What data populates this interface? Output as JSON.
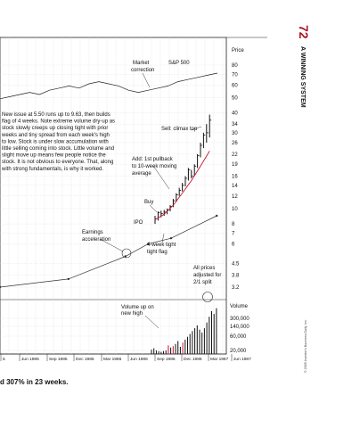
{
  "header": {
    "page_number": "72",
    "section_title": "A WINNING SYSTEM"
  },
  "caption": {
    "text": "d 307% in 23 weeks."
  },
  "copyright": {
    "text": "© 2009 Investor's Business Daily, Inc."
  },
  "chart_data": {
    "type": "line",
    "price_axis_label": "Price",
    "price_ticks": [
      "80",
      "70",
      "60",
      "50",
      "40",
      "34",
      "30",
      "26",
      "22",
      "19",
      "16",
      "14",
      "12",
      "10",
      "8",
      "7",
      "6",
      "4.5",
      "3.8",
      "3.2"
    ],
    "volume_axis_label": "Volume",
    "volume_ticks": [
      "300,000",
      "140,000",
      "60,000",
      "20,000"
    ],
    "x_ticks": [
      "5",
      "Jun 1985",
      "Sep 1985",
      "Dec 1985",
      "Mar 1986",
      "Jun 1986",
      "Sep 1986",
      "Dec 1986",
      "Mar 1987",
      "Jun 1987"
    ],
    "annotations": {
      "market_correction": [
        "Market",
        "correction"
      ],
      "sp500": "S&P 500",
      "sell_climax": "Sell: climax top",
      "description": [
        "New issue at 5.50 runs up to 9.63, then builds",
        "flag of 4 weeks. Note extreme volume dry-up as",
        "stock slowly creeps up closing tight with prior",
        "weeks and tiny spread from each week's high",
        "to low. Stock is under slow accumulation with",
        "little selling coming into stock. Little volume and",
        "slight move up means few people notice the",
        "stock. It is not obvious to everyone. That, along",
        "with strong fundamentals, is why it worked."
      ],
      "add_pullback": [
        "Add: 1st pullback",
        "to 10-week moving",
        "average"
      ],
      "buy": "Buy",
      "ipo": "IPO",
      "earnings": [
        "Earnings",
        "acceleration"
      ],
      "tight_flag": [
        "4-week tight",
        "tight flag"
      ],
      "split": [
        "All prices",
        "adjusted for",
        "2/1 split"
      ],
      "volume_up": [
        "Volume up on",
        "new high"
      ]
    },
    "series": [
      {
        "name": "S&P 500",
        "x": [
          0,
          1,
          2,
          3,
          4,
          5,
          6,
          7,
          8,
          9,
          10,
          11,
          12,
          13,
          14,
          15,
          16,
          17,
          18,
          19,
          20,
          21,
          22
        ],
        "values": [
          78,
          79,
          80,
          81,
          80,
          82,
          83,
          84,
          83,
          85,
          86,
          85,
          84,
          82,
          81,
          82,
          83,
          84,
          86,
          87,
          88,
          89,
          90
        ]
      }
    ],
    "earnings_line": {
      "x": [
        0,
        6,
        11,
        13,
        15,
        19
      ],
      "values": [
        3.2,
        3.6,
        5.0,
        6.0,
        6.5,
        9.0
      ]
    },
    "weekly_bars": [
      {
        "w": 0,
        "h": 9.0,
        "l": 8.0,
        "c": 8.6
      },
      {
        "w": 1,
        "h": 9.6,
        "l": 8.4,
        "c": 9.4
      },
      {
        "w": 2,
        "h": 9.7,
        "l": 8.8,
        "c": 9.3
      },
      {
        "w": 3,
        "h": 9.8,
        "l": 9.0,
        "c": 9.5
      },
      {
        "w": 4,
        "h": 10.0,
        "l": 9.2,
        "c": 9.8
      },
      {
        "w": 5,
        "h": 10.5,
        "l": 9.6,
        "c": 10.3
      },
      {
        "w": 6,
        "h": 11.5,
        "l": 10.2,
        "c": 11.2
      },
      {
        "w": 7,
        "h": 12.5,
        "l": 11.0,
        "c": 12.2
      },
      {
        "w": 8,
        "h": 13.5,
        "l": 12.0,
        "c": 13.0
      },
      {
        "w": 9,
        "h": 14.5,
        "l": 12.8,
        "c": 14.0
      },
      {
        "w": 10,
        "h": 16.0,
        "l": 13.8,
        "c": 15.5
      },
      {
        "w": 11,
        "h": 18.0,
        "l": 15.0,
        "c": 17.5
      },
      {
        "w": 12,
        "h": 17.5,
        "l": 15.5,
        "c": 16.0
      },
      {
        "w": 13,
        "h": 19.0,
        "l": 16.0,
        "c": 18.5
      },
      {
        "w": 14,
        "h": 22.0,
        "l": 18.0,
        "c": 21.5
      },
      {
        "w": 15,
        "h": 26.0,
        "l": 21.0,
        "c": 25.0
      },
      {
        "w": 16,
        "h": 30.0,
        "l": 24.0,
        "c": 29.0
      },
      {
        "w": 17,
        "h": 34.0,
        "l": 26.0,
        "c": 30.0
      },
      {
        "w": 18,
        "h": 39.0,
        "l": 28.0,
        "c": 36.0
      }
    ],
    "moving_average": {
      "x": [
        0,
        3,
        6,
        9,
        12,
        15,
        18
      ],
      "values": [
        8.5,
        9.2,
        10.5,
        12.5,
        15.0,
        18.5,
        23.0
      ]
    },
    "volume_bars": [
      30,
      40,
      25,
      20,
      15,
      20,
      25,
      60,
      45,
      55,
      70,
      90,
      50,
      80,
      100,
      120,
      140,
      160,
      180,
      200,
      170,
      150,
      180,
      220,
      260,
      300,
      280,
      320
    ]
  }
}
